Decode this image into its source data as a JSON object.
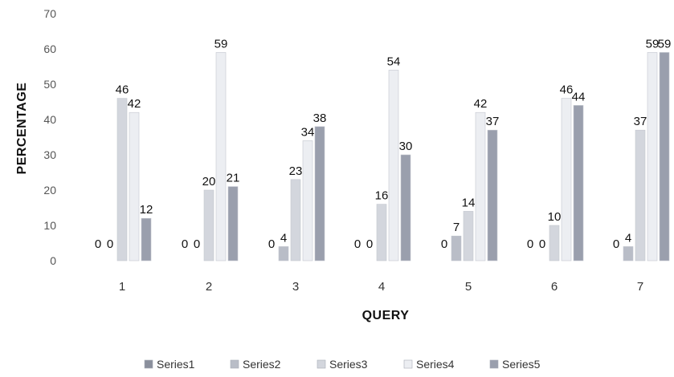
{
  "chart_data": {
    "type": "bar",
    "title": "",
    "xlabel": "QUERY",
    "ylabel": "PERCENTAGE",
    "ylim": [
      0,
      70
    ],
    "yticks": [
      0,
      10,
      20,
      30,
      40,
      50,
      60,
      70
    ],
    "categories": [
      "1",
      "2",
      "3",
      "4",
      "5",
      "6",
      "7"
    ],
    "grid": false,
    "legend_position": "bottom",
    "series": [
      {
        "name": "Series1",
        "color": "#8a8f9c",
        "values": [
          0,
          0,
          0,
          0,
          0,
          0,
          0
        ]
      },
      {
        "name": "Series2",
        "color": "#b9bdc7",
        "values": [
          0,
          0,
          4,
          0,
          7,
          0,
          4
        ]
      },
      {
        "name": "Series3",
        "color": "#d3d6dd",
        "values": [
          46,
          20,
          23,
          16,
          14,
          10,
          37
        ]
      },
      {
        "name": "Series4",
        "color": "#eceef2",
        "values": [
          42,
          59,
          34,
          54,
          42,
          46,
          59
        ]
      },
      {
        "name": "Series5",
        "color": "#9a9fad",
        "values": [
          12,
          21,
          38,
          30,
          37,
          44,
          59
        ]
      }
    ]
  }
}
